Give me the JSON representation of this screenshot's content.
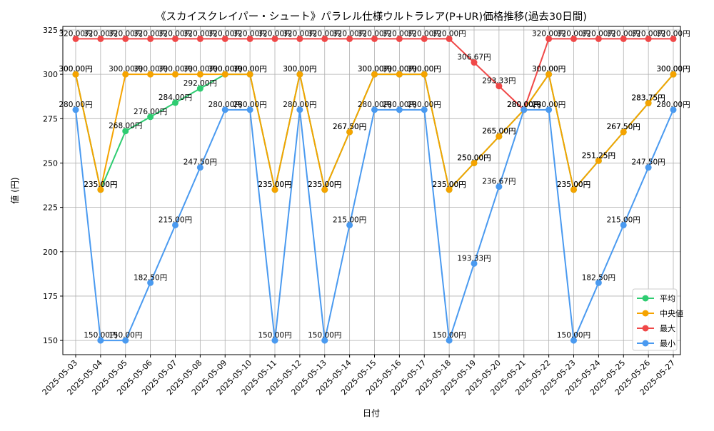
{
  "chart_data": {
    "type": "line",
    "title": "《スカイスクレイパー・シュート》パラレル仕様ウルトラレア(P+UR)価格推移(過去30日間)",
    "xlabel": "日付",
    "ylabel": "値 (円)",
    "ylim": [
      142,
      327
    ],
    "yticks": [
      150,
      175,
      200,
      225,
      250,
      275,
      300,
      325
    ],
    "grid": true,
    "legend_position": "lower-right",
    "value_suffix": "円",
    "categories": [
      "2025-05-03",
      "2025-05-04",
      "2025-05-05",
      "2025-05-06",
      "2025-05-07",
      "2025-05-08",
      "2025-05-09",
      "2025-05-10",
      "2025-05-11",
      "2025-05-12",
      "2025-05-13",
      "2025-05-14",
      "2025-05-15",
      "2025-05-16",
      "2025-05-17",
      "2025-05-18",
      "2025-05-19",
      "2025-05-20",
      "2025-05-21",
      "2025-05-22",
      "2025-05-23",
      "2025-05-24",
      "2025-05-25",
      "2025-05-26",
      "2025-05-27"
    ],
    "series": [
      {
        "name": "平均",
        "color": "#2ecc71",
        "values": [
          300.0,
          235.0,
          268.0,
          276.0,
          284.0,
          292.0,
          300.0,
          300.0,
          235.0,
          300.0,
          235.0,
          267.5,
          300.0,
          300.0,
          300.0,
          235.0,
          250.0,
          265.0,
          280.0,
          300.0,
          235.0,
          251.25,
          267.5,
          283.75,
          300.0
        ]
      },
      {
        "name": "中央値",
        "color": "#f5a300",
        "values": [
          300.0,
          235.0,
          300.0,
          300.0,
          300.0,
          300.0,
          300.0,
          300.0,
          235.0,
          300.0,
          235.0,
          267.5,
          300.0,
          300.0,
          300.0,
          235.0,
          250.0,
          265.0,
          280.0,
          300.0,
          235.0,
          251.25,
          267.5,
          283.75,
          300.0
        ]
      },
      {
        "name": "最大",
        "color": "#f04848",
        "values": [
          320.0,
          320.0,
          320.0,
          320.0,
          320.0,
          320.0,
          320.0,
          320.0,
          320.0,
          320.0,
          320.0,
          320.0,
          320.0,
          320.0,
          320.0,
          320.0,
          306.67,
          293.33,
          280.0,
          320.0,
          320.0,
          320.0,
          320.0,
          320.0,
          320.0
        ]
      },
      {
        "name": "最小",
        "color": "#4a9af0",
        "values": [
          280.0,
          150.0,
          150.0,
          182.5,
          215.0,
          247.5,
          280.0,
          280.0,
          150.0,
          280.0,
          150.0,
          215.0,
          280.0,
          280.0,
          280.0,
          150.0,
          193.33,
          236.67,
          280.0,
          280.0,
          150.0,
          182.5,
          215.0,
          247.5,
          280.0
        ]
      }
    ]
  }
}
